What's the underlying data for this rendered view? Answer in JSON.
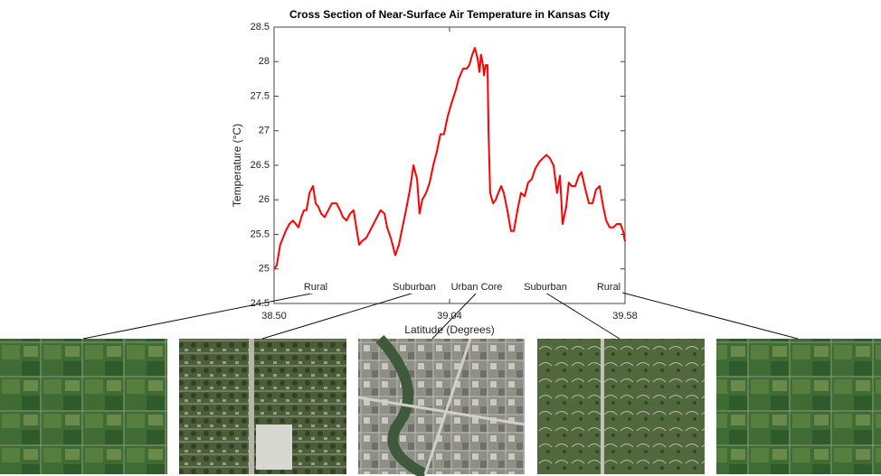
{
  "chart_data": {
    "type": "line",
    "title": "Cross Section of Near-Surface Air Temperature in Kansas City",
    "x_label": "Latitude (Degrees)",
    "y_label": "Temperature (°C)",
    "x": [
      38.5,
      38.508,
      38.519,
      38.536,
      38.547,
      38.558,
      38.567,
      38.575,
      38.584,
      38.592,
      38.6,
      38.609,
      38.62,
      38.628,
      38.636,
      38.645,
      38.656,
      38.667,
      38.678,
      38.692,
      38.703,
      38.712,
      38.723,
      38.734,
      38.745,
      38.753,
      38.762,
      38.77,
      38.784,
      38.795,
      38.806,
      38.817,
      38.828,
      38.84,
      38.848,
      38.859,
      38.873,
      38.884,
      38.895,
      38.906,
      38.918,
      38.929,
      38.94,
      38.948,
      38.956,
      38.968,
      38.979,
      38.99,
      39.001,
      39.012,
      39.023,
      39.034,
      39.046,
      39.06,
      39.068,
      39.082,
      39.093,
      39.101,
      39.11,
      39.118,
      39.126,
      39.132,
      39.137,
      39.143,
      39.146,
      39.151,
      39.157,
      39.16,
      39.165,
      39.174,
      39.182,
      39.19,
      39.199,
      39.207,
      39.218,
      39.229,
      39.238,
      39.249,
      39.26,
      39.271,
      39.282,
      39.293,
      39.304,
      39.316,
      39.327,
      39.338,
      39.349,
      39.36,
      39.371,
      39.38,
      39.388,
      39.399,
      39.407,
      39.416,
      39.427,
      39.438,
      39.446,
      39.458,
      39.469,
      39.48,
      39.491,
      39.502,
      39.513,
      39.522,
      39.533,
      39.544,
      39.555,
      39.566,
      39.574,
      39.58
    ],
    "values": [
      25.0,
      25.05,
      25.35,
      25.55,
      25.65,
      25.7,
      25.65,
      25.6,
      25.75,
      25.85,
      25.85,
      26.1,
      26.2,
      25.95,
      25.9,
      25.8,
      25.75,
      25.85,
      25.95,
      25.95,
      25.85,
      25.75,
      25.7,
      25.8,
      25.85,
      25.6,
      25.35,
      25.4,
      25.45,
      25.55,
      25.65,
      25.75,
      25.85,
      25.8,
      25.6,
      25.45,
      25.2,
      25.35,
      25.6,
      25.85,
      26.15,
      26.5,
      26.3,
      25.8,
      26.0,
      26.1,
      26.25,
      26.5,
      26.7,
      26.95,
      26.95,
      27.2,
      27.4,
      27.6,
      27.75,
      27.9,
      27.9,
      27.95,
      28.1,
      28.2,
      28.05,
      27.85,
      28.1,
      27.95,
      27.8,
      27.95,
      27.95,
      27.0,
      26.1,
      25.95,
      26.0,
      26.1,
      26.2,
      26.1,
      25.85,
      25.55,
      25.55,
      25.85,
      26.1,
      26.05,
      26.25,
      26.3,
      26.45,
      26.55,
      26.6,
      26.65,
      26.6,
      26.5,
      26.1,
      26.35,
      25.65,
      25.9,
      26.25,
      26.2,
      26.2,
      26.35,
      26.4,
      26.15,
      25.95,
      25.95,
      26.15,
      26.2,
      25.9,
      25.7,
      25.6,
      25.6,
      25.65,
      25.65,
      25.55,
      25.4
    ],
    "color": "#ff0000",
    "xlim": [
      38.5,
      39.58
    ],
    "xticks": [
      {
        "value": 38.5,
        "label": "38.50"
      },
      39.04,
      39.58
    ],
    "ylim": [
      24.5,
      28.5
    ],
    "yticks": [
      24.5,
      25,
      25.5,
      26,
      26.5,
      27,
      27.5,
      28,
      28.5
    ],
    "annotations": [
      "Rural",
      "Suburban",
      "Urban Core",
      "Suburban",
      "Rural"
    ]
  }
}
